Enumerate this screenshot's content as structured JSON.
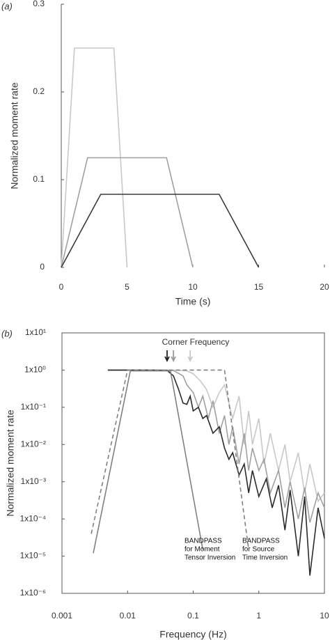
{
  "chart_data": [
    {
      "type": "line",
      "panel_label": "(a)",
      "xlabel": "Time (s)",
      "ylabel": "Normalized moment rate",
      "xlim": [
        0,
        20
      ],
      "ylim": [
        0,
        0.3
      ],
      "xticks": [
        0,
        5,
        10,
        15,
        20
      ],
      "yticks": [
        0,
        0.1,
        0.2,
        0.3
      ],
      "log_scale": false,
      "series": [
        {
          "color": "#c8c8c8",
          "x": [
            0,
            1,
            4,
            5
          ],
          "values": [
            0,
            0.25,
            0.25,
            0
          ]
        },
        {
          "color": "#a0a0a0",
          "x": [
            0,
            2,
            8,
            10
          ],
          "values": [
            0,
            0.125,
            0.125,
            0
          ]
        },
        {
          "color": "#3a3a3a",
          "x": [
            0,
            3,
            12,
            15
          ],
          "values": [
            0,
            0.0833,
            0.0833,
            0
          ]
        }
      ]
    },
    {
      "type": "line",
      "panel_label": "(b)",
      "xlabel": "Frequency (Hz)",
      "ylabel": "Normalized moment rate",
      "xlim": [
        0.001,
        10
      ],
      "ylim": [
        1e-06,
        10
      ],
      "xticks": [
        0.001,
        0.01,
        0.1,
        1,
        10
      ],
      "yticks": [
        {
          "value": 10,
          "label": "1x10¹"
        },
        {
          "value": 1,
          "label": "1x10⁰"
        },
        {
          "value": 0.1,
          "label": "1x10⁻¹"
        },
        {
          "value": 0.01,
          "label": "1x10⁻²"
        },
        {
          "value": 0.001,
          "label": "1x10⁻³"
        },
        {
          "value": 0.0001,
          "label": "1x10⁻⁴"
        },
        {
          "value": 1e-05,
          "label": "1x10⁻⁵"
        },
        {
          "value": 1e-06,
          "label": "1x10⁻⁶"
        }
      ],
      "log_scale": true,
      "series": [
        {
          "color": "#c8c8c8",
          "x": [
            0.005,
            0.05,
            0.08,
            0.1,
            0.13,
            0.16,
            0.2,
            0.25,
            0.3,
            0.4,
            0.5,
            0.6,
            0.7,
            0.8,
            1,
            1.2,
            1.5,
            2,
            2.5,
            3,
            4,
            5,
            6,
            8,
            10
          ],
          "values": [
            1,
            1,
            0.95,
            0.8,
            0.5,
            0.3,
            0.1,
            0.25,
            0.4,
            0.05,
            0.2,
            0.01,
            0.08,
            0.01,
            0.05,
            0.003,
            0.02,
            0.002,
            0.01,
            0.001,
            0.006,
            0.0005,
            0.003,
            0.0003,
            0.0005
          ]
        },
        {
          "color": "#a0a0a0",
          "x": [
            0.005,
            0.03,
            0.05,
            0.07,
            0.08,
            0.1,
            0.12,
            0.14,
            0.17,
            0.2,
            0.25,
            0.3,
            0.35,
            0.4,
            0.5,
            0.6,
            0.7,
            0.8,
            1,
            1.2,
            1.5,
            2,
            2.5,
            3,
            4,
            5,
            6,
            8,
            10
          ],
          "values": [
            1,
            1,
            0.97,
            0.7,
            0.4,
            0.25,
            0.1,
            0.2,
            0.05,
            0.15,
            0.02,
            0.06,
            0.01,
            0.03,
            0.003,
            0.02,
            0.002,
            0.008,
            0.002,
            0.004,
            0.0005,
            0.002,
            0.0002,
            0.001,
            0.0001,
            0.0007,
            8e-05,
            0.0005,
            0.0002
          ]
        },
        {
          "color": "#2a2a2a",
          "x": [
            0.005,
            0.02,
            0.04,
            0.05,
            0.06,
            0.07,
            0.08,
            0.09,
            0.1,
            0.12,
            0.14,
            0.16,
            0.2,
            0.25,
            0.3,
            0.35,
            0.4,
            0.5,
            0.6,
            0.7,
            0.8,
            1,
            1.3,
            1.6,
            2,
            2.5,
            3,
            4,
            5,
            6,
            8,
            10
          ],
          "values": [
            1,
            1,
            0.98,
            0.7,
            0.3,
            0.13,
            0.12,
            0.2,
            0.08,
            0.1,
            0.05,
            0.06,
            0.02,
            0.03,
            0.008,
            0.004,
            0.006,
            0.0015,
            0.003,
            0.0005,
            0.002,
            0.0004,
            0.0012,
            0.0002,
            0.0008,
            5e-05,
            0.0006,
            1e-05,
            0.0004,
            3e-06,
            0.0002,
            3e-05
          ]
        },
        {
          "color": "#808080",
          "x": [
            0.003,
            0.011,
            0.045,
            0.14
          ],
          "values": [
            1.2e-05,
            0.95,
            0.95,
            1.5e-05
          ]
        },
        {
          "color": "#808080",
          "dash": true,
          "x": [
            0.0028,
            0.01,
            0.3,
            0.7
          ],
          "values": [
            4e-05,
            1,
            1,
            1.5e-05
          ]
        }
      ],
      "corner_label": "Corner Frequency",
      "arrows": [
        {
          "x": 0.04,
          "color": "#222"
        },
        {
          "x": 0.05,
          "color": "#999"
        },
        {
          "x": 0.09,
          "color": "#c8c8c8"
        }
      ],
      "annotations": [
        {
          "lines": [
            "BANDPASS",
            "for Moment",
            "Tensor Inversion"
          ]
        },
        {
          "lines": [
            "BANDPASS",
            "for Source",
            "Time Inversion"
          ]
        }
      ]
    }
  ]
}
